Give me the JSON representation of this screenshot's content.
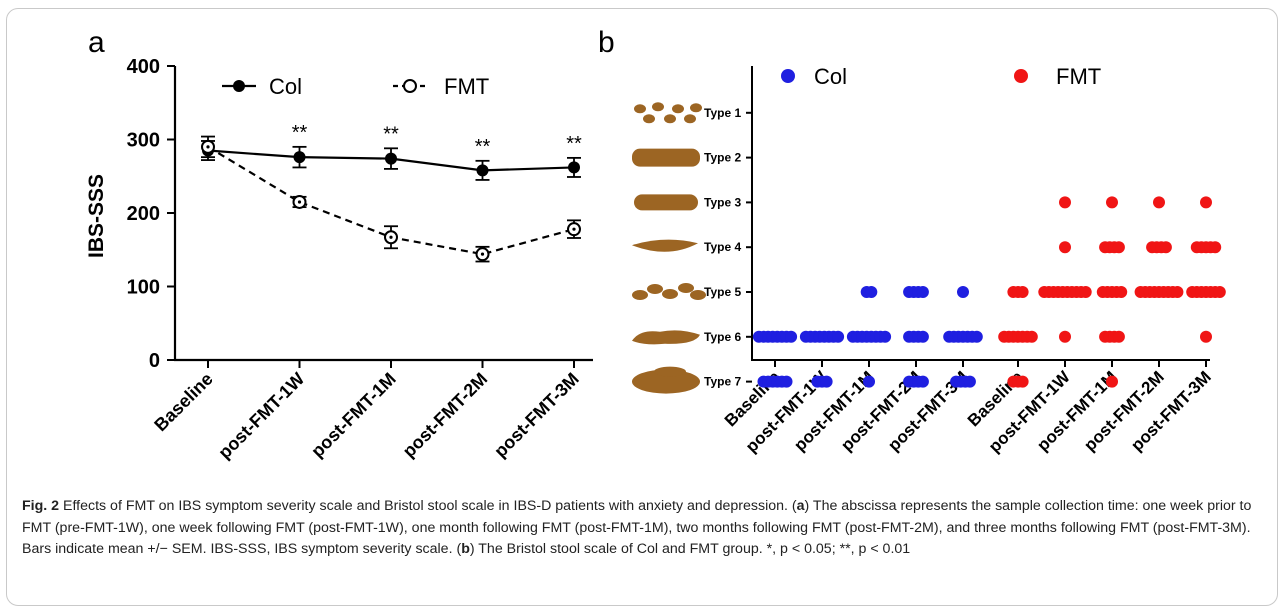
{
  "chart_data": [
    {
      "panel_label": "a",
      "type": "line",
      "ylabel": "IBS-SSS",
      "ylim": [
        0,
        400
      ],
      "yticks": [
        0,
        100,
        200,
        300,
        400
      ],
      "categories": [
        "Baseline",
        "post-FMT-1W",
        "post-FMT-1M",
        "post-FMT-2M",
        "post-FMT-3M"
      ],
      "series": [
        {
          "name": "Col",
          "style": "solid line, filled circle",
          "color": "#000000",
          "values": [
            285,
            276,
            274,
            258,
            262
          ],
          "sem": [
            13,
            14,
            14,
            13,
            13
          ]
        },
        {
          "name": "FMT",
          "style": "dashed line, open circle",
          "color": "#000000",
          "values": [
            290,
            215,
            167,
            144,
            178
          ],
          "sem": [
            14,
            7,
            15,
            10,
            12
          ]
        }
      ],
      "annotations": [
        "**",
        "**",
        "**",
        "**"
      ],
      "legend": "top"
    },
    {
      "panel_label": "b",
      "type": "scatter",
      "y_categories": [
        "Type 1",
        "Type 2",
        "Type 3",
        "Type 4",
        "Type 5",
        "Type 6",
        "Type 7"
      ],
      "categories": [
        "Baseline",
        "post-FMT-1W",
        "post-FMT-1M",
        "post-FMT-2M",
        "post-FMT-3M",
        "Baseline",
        "post-FMT-1W",
        "post-FMT-1M",
        "post-FMT-2M",
        "post-FMT-3M"
      ],
      "series": [
        {
          "name": "Col",
          "color": "#1f1fe0",
          "points": [
            {
              "group": 0,
              "type": 6,
              "count": 8
            },
            {
              "group": 0,
              "type": 7,
              "count": 6
            },
            {
              "group": 1,
              "type": 6,
              "count": 8
            },
            {
              "group": 1,
              "type": 7,
              "count": 3
            },
            {
              "group": 2,
              "type": 5,
              "count": 2
            },
            {
              "group": 2,
              "type": 6,
              "count": 8
            },
            {
              "group": 2,
              "type": 7,
              "count": 1
            },
            {
              "group": 3,
              "type": 5,
              "count": 4
            },
            {
              "group": 3,
              "type": 6,
              "count": 4
            },
            {
              "group": 3,
              "type": 7,
              "count": 4
            },
            {
              "group": 4,
              "type": 5,
              "count": 1
            },
            {
              "group": 4,
              "type": 6,
              "count": 7
            },
            {
              "group": 4,
              "type": 7,
              "count": 4
            }
          ]
        },
        {
          "name": "FMT",
          "color": "#f01515",
          "points": [
            {
              "group": 5,
              "type": 5,
              "count": 3
            },
            {
              "group": 5,
              "type": 6,
              "count": 7
            },
            {
              "group": 5,
              "type": 7,
              "count": 3
            },
            {
              "group": 6,
              "type": 3,
              "count": 1
            },
            {
              "group": 6,
              "type": 4,
              "count": 1
            },
            {
              "group": 6,
              "type": 5,
              "count": 10
            },
            {
              "group": 6,
              "type": 6,
              "count": 1
            },
            {
              "group": 7,
              "type": 3,
              "count": 1
            },
            {
              "group": 7,
              "type": 4,
              "count": 4
            },
            {
              "group": 7,
              "type": 5,
              "count": 5
            },
            {
              "group": 7,
              "type": 6,
              "count": 4
            },
            {
              "group": 7,
              "type": 7,
              "count": 1
            },
            {
              "group": 8,
              "type": 3,
              "count": 1
            },
            {
              "group": 8,
              "type": 4,
              "count": 4
            },
            {
              "group": 8,
              "type": 5,
              "count": 9
            },
            {
              "group": 9,
              "type": 3,
              "count": 1
            },
            {
              "group": 9,
              "type": 4,
              "count": 5
            },
            {
              "group": 9,
              "type": 5,
              "count": 7
            },
            {
              "group": 9,
              "type": 6,
              "count": 1
            }
          ]
        }
      ],
      "legend": "top"
    }
  ],
  "caption": {
    "label": "Fig. 2",
    "text_1": "  Effects of FMT on IBS symptom severity scale and Bristol stool scale in IBS-D patients with anxiety and depression. (",
    "ref_a": "a",
    "text_2": ") The abscissa represents the sample collection time: one week prior to FMT (pre-FMT-1W), one week following FMT (post-FMT-1W), one month following FMT (post-FMT-1M), two months following FMT (post-FMT-2M), and three months following FMT (post-FMT-3M). Bars indicate mean +/− SEM. IBS-SSS, IBS symptom severity scale. (",
    "ref_b": "b",
    "text_3": ") The Bristol stool scale of Col and FMT group. *, p < 0.05; **, p < 0.01"
  }
}
